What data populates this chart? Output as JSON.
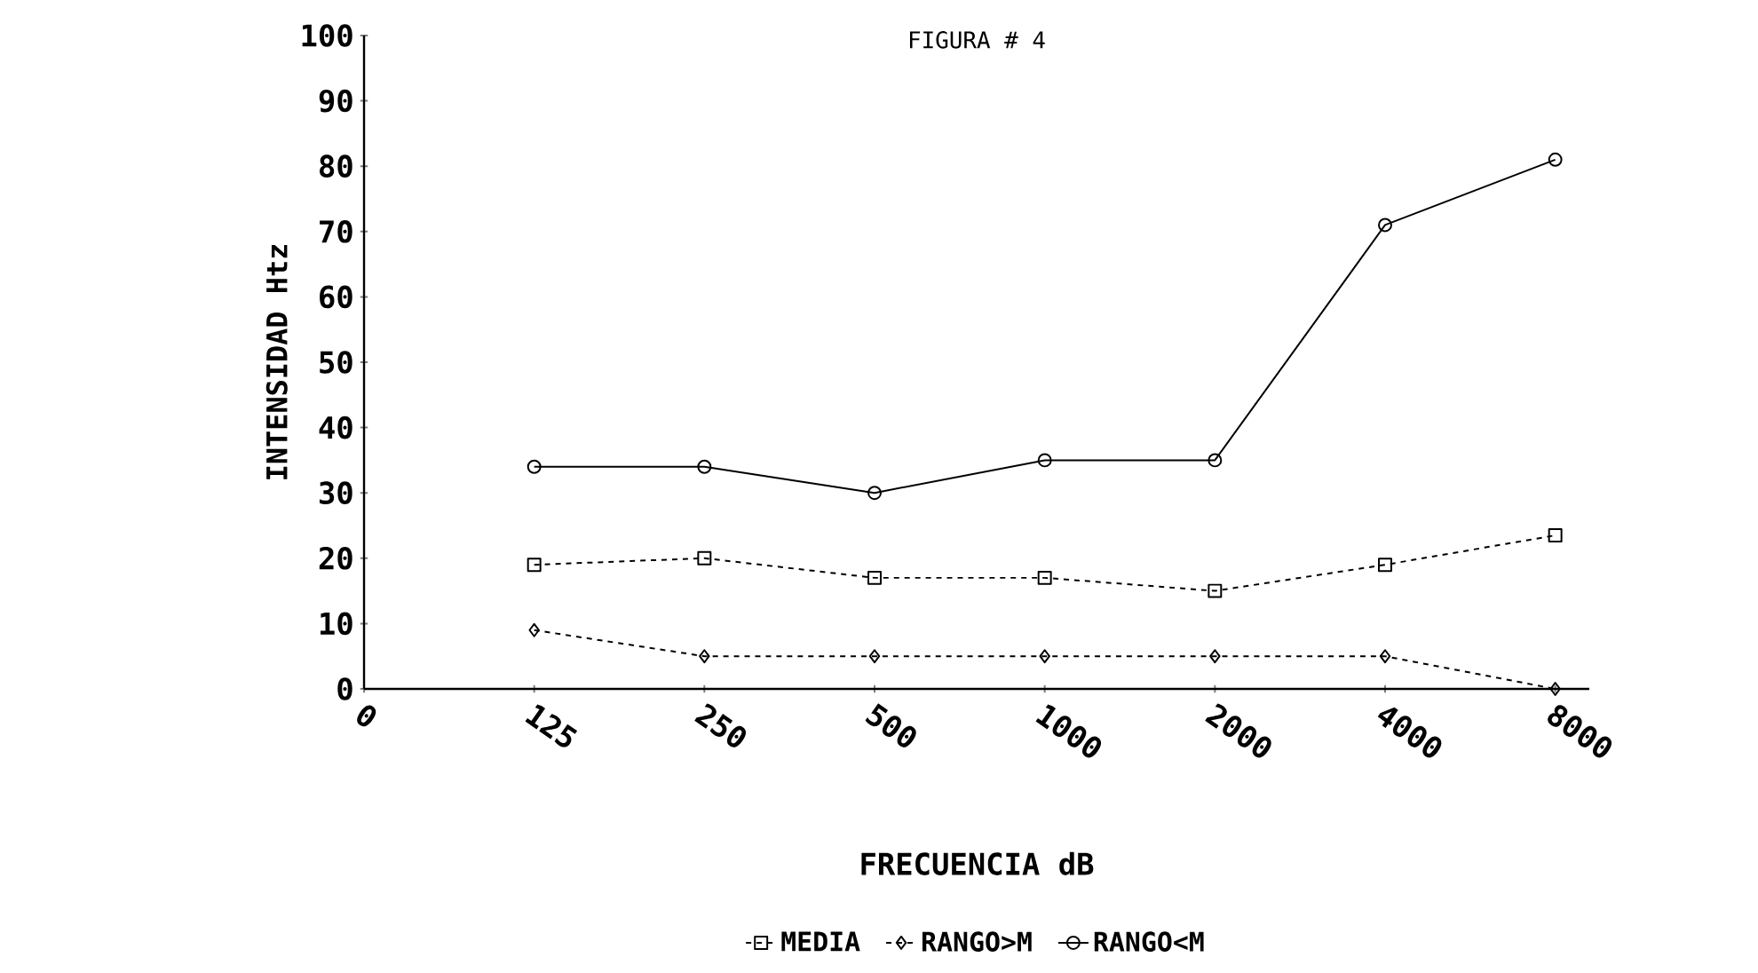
{
  "chart_data": {
    "type": "line",
    "title": "FIGURA # 4",
    "xlabel": "FRECUENCIA dB",
    "ylabel": "INTENSIDAD Htz",
    "categories": [
      "0",
      "125",
      "250",
      "500",
      "1000",
      "2000",
      "4000",
      "8000"
    ],
    "series": [
      {
        "name": "MEDIA",
        "color": "#000000",
        "marker": "square",
        "line_style": "dashed",
        "values": [
          null,
          19,
          20,
          17,
          17,
          15,
          19,
          23.5
        ]
      },
      {
        "name": "RANGO>M",
        "color": "#000000",
        "marker": "diamond",
        "line_style": "dashed",
        "values": [
          null,
          9,
          5,
          5,
          5,
          5,
          5,
          0
        ]
      },
      {
        "name": "RANGO<M",
        "color": "#000000",
        "marker": "circle",
        "line_style": "solid",
        "values": [
          null,
          34,
          34,
          30,
          35,
          35,
          71,
          81
        ]
      }
    ],
    "ylim": [
      0,
      100
    ],
    "yticks": [
      0,
      10,
      20,
      30,
      40,
      50,
      60,
      70,
      80,
      90,
      100
    ],
    "legend": "bottom"
  }
}
